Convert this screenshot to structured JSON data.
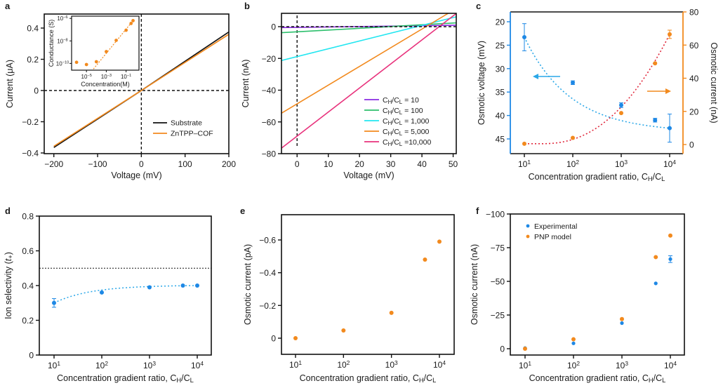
{
  "colors": {
    "black": "#111111",
    "orange": "#f28a1e",
    "blue": "#1e88e5",
    "purple": "#8a2be2",
    "green": "#2cbf6c",
    "cyan": "#22e6f0",
    "magenta": "#e8327c",
    "red_dotted": "#e0283c",
    "light_blue_dotted": "#2aa7e8",
    "axis_blue": "#1e88e5",
    "axis_orange": "#f28a1e"
  },
  "chart_data": [
    {
      "id": "a",
      "panel_label": "a",
      "type": "line",
      "xlabel": "Voltage (mV)",
      "ylabel": "Current (μA)",
      "xlim": [
        -222,
        200
      ],
      "ylim": [
        -0.4,
        0.48
      ],
      "xticks": [
        -200,
        -100,
        0,
        100,
        200
      ],
      "xtick_labels": [
        "−200",
        "−100",
        "0",
        "100",
        "200"
      ],
      "yticks": [
        -0.4,
        -0.2,
        0,
        0.2,
        0.4
      ],
      "ytick_labels": [
        "−0.4",
        "−0.2",
        "0",
        "0.2",
        "0.4"
      ],
      "reference_lines": [
        {
          "axis": "x",
          "value": 0,
          "style": "dashed"
        },
        {
          "axis": "y",
          "value": 0,
          "style": "dashed"
        }
      ],
      "legend_position": "lower-right",
      "series": [
        {
          "name": "Substrate",
          "color": "#111111",
          "x": [
            -200,
            0,
            200
          ],
          "y": [
            -0.365,
            0,
            0.375
          ]
        },
        {
          "name": "ZnTPP–COF",
          "color": "#f28a1e",
          "x": [
            -200,
            0,
            200
          ],
          "y": [
            -0.357,
            0,
            0.36
          ]
        }
      ],
      "inset": {
        "type": "scatter",
        "xlabel": "Concentration(M)",
        "ylabel": "Conductance (S)",
        "xscale": "log",
        "yscale": "log",
        "xlim_exp": [
          -6.5,
          0.3
        ],
        "ylim_exp": [
          -10.6,
          -5.8
        ],
        "xtick_labels": [
          {
            "base": "10",
            "exp": "−5",
            "value_exp": -5
          },
          {
            "base": "10",
            "exp": "−3",
            "value_exp": -3
          },
          {
            "base": "10",
            "exp": "−1",
            "value_exp": -1
          }
        ],
        "ytick_labels": [
          {
            "base": "10",
            "exp": "−6",
            "value_exp": -6
          },
          {
            "base": "10",
            "exp": "−8",
            "value_exp": -8
          },
          {
            "base": "10",
            "exp": "−10",
            "value_exp": -10
          }
        ],
        "points_exp": [
          [
            -6.0,
            -9.9
          ],
          [
            -5.0,
            -10.1
          ],
          [
            -4.0,
            -9.85
          ],
          [
            -3.0,
            -8.95
          ],
          [
            -2.0,
            -7.95
          ],
          [
            -1.0,
            -7.05
          ],
          [
            -0.5,
            -6.45
          ],
          [
            -0.3,
            -6.2
          ]
        ],
        "fit_line_exp": [
          [
            -4.3,
            -10.5
          ],
          [
            -0.3,
            -6.2
          ]
        ],
        "color": "#f28a1e"
      }
    },
    {
      "id": "b",
      "panel_label": "b",
      "type": "line",
      "xlabel": "Voltage (mV)",
      "ylabel": "Current (nA)",
      "xlim": [
        -5,
        51
      ],
      "ylim": [
        -80,
        8.5
      ],
      "xticks": [
        0,
        10,
        20,
        30,
        40,
        50
      ],
      "xtick_labels": [
        "0",
        "10",
        "20",
        "30",
        "40",
        "50"
      ],
      "yticks": [
        -80,
        -60,
        -40,
        -20,
        0
      ],
      "ytick_labels": [
        "−80",
        "−60",
        "−40",
        "−20",
        "0"
      ],
      "reference_lines": [
        {
          "axis": "x",
          "value": 0,
          "style": "dashed"
        },
        {
          "axis": "y",
          "value": 0,
          "style": "dashed"
        }
      ],
      "legend_position": "lower-right",
      "series": [
        {
          "name_parts": [
            "C",
            "H",
            "/C",
            "L",
            " = 10"
          ],
          "color": "#8a2be2",
          "x": [
            -5,
            51
          ],
          "y": [
            -0.6,
            0.9
          ]
        },
        {
          "name_parts": [
            "C",
            "H",
            "/C",
            "L",
            " = 100"
          ],
          "color": "#2cbf6c",
          "x": [
            -5,
            51
          ],
          "y": [
            -3.8,
            2.4
          ]
        },
        {
          "name_parts": [
            "C",
            "H",
            "/C",
            "L",
            " = 1,000"
          ],
          "color": "#22e6f0",
          "x": [
            -5,
            51
          ],
          "y": [
            -21.3,
            6.2
          ]
        },
        {
          "name_parts": [
            "C",
            "H",
            "/C",
            "L",
            " = 5,000"
          ],
          "color": "#f28a1e",
          "x": [
            -5,
            48.5
          ],
          "y": [
            -54.5,
            8.5
          ]
        },
        {
          "name_parts": [
            "C",
            "H",
            "/C",
            "L",
            " =10,000"
          ],
          "color": "#e8327c",
          "x": [
            -5,
            51
          ],
          "y": [
            -76.5,
            8.3
          ]
        }
      ]
    },
    {
      "id": "c",
      "panel_label": "c",
      "type": "scatter",
      "xlabel_parts": [
        "Concentration gradient ratio, C",
        "H",
        "/C",
        "L"
      ],
      "xscale": "log",
      "xlim_exp": [
        0.7,
        4.3
      ],
      "xtick_labels": [
        {
          "base": "10",
          "exp": "1",
          "value_exp": 1
        },
        {
          "base": "10",
          "exp": "2",
          "value_exp": 2
        },
        {
          "base": "10",
          "exp": "3",
          "value_exp": 3
        },
        {
          "base": "10",
          "exp": "4",
          "value_exp": 4
        }
      ],
      "left_axis": {
        "label": "Osmotic voltage (mV)",
        "inverted": true,
        "ylim": [
          18.2,
          48.2
        ],
        "yticks": [
          20,
          25,
          30,
          35,
          40,
          45
        ],
        "ytick_labels": [
          "20",
          "25",
          "30",
          "35",
          "40",
          "45"
        ],
        "color": "#1e88e5"
      },
      "right_axis": {
        "label": "Osmotic current (nA)",
        "ylim": [
          -4,
          80
        ],
        "yticks": [
          0,
          20,
          40,
          60,
          80
        ],
        "ytick_labels": [
          "0",
          "20",
          "40",
          "60",
          "80"
        ],
        "color": "#f28a1e"
      },
      "series": [
        {
          "name": "Osmotic voltage",
          "axis": "left",
          "color": "#1e88e5",
          "fit_color": "#2aa7e8",
          "x": [
            10,
            100,
            1000,
            5000,
            10000
          ],
          "y": [
            23.3,
            33.0,
            37.8,
            41.0,
            42.7
          ],
          "err": [
            2.9,
            0.4,
            0.5,
            0.4,
            3.0
          ]
        },
        {
          "name": "Osmotic current",
          "axis": "right",
          "color": "#f28a1e",
          "fit_color": "#e0283c",
          "x": [
            10,
            100,
            1000,
            5000,
            10000
          ],
          "y": [
            0.5,
            4.0,
            19.0,
            49.0,
            66.5
          ],
          "err": [
            0,
            0,
            0,
            0,
            2.5
          ]
        }
      ],
      "annotations": [
        {
          "type": "arrow",
          "direction": "left",
          "color": "#2aa7e8",
          "meaning": "left axis"
        },
        {
          "type": "arrow",
          "direction": "right",
          "color": "#f28a1e",
          "meaning": "right axis"
        }
      ]
    },
    {
      "id": "d",
      "panel_label": "d",
      "type": "scatter",
      "xlabel_parts": [
        "Concentration gradient ratio, C",
        "H",
        "/C",
        "L"
      ],
      "ylabel_parts": [
        "Ion selectivity (",
        "t",
        "+",
        ")"
      ],
      "xscale": "log",
      "xlim_exp": [
        0.7,
        4.3
      ],
      "ylim": [
        0,
        0.8
      ],
      "xtick_labels": [
        {
          "base": "10",
          "exp": "1",
          "value_exp": 1
        },
        {
          "base": "10",
          "exp": "2",
          "value_exp": 2
        },
        {
          "base": "10",
          "exp": "3",
          "value_exp": 3
        },
        {
          "base": "10",
          "exp": "4",
          "value_exp": 4
        }
      ],
      "yticks": [
        0,
        0.2,
        0.4,
        0.6,
        0.8
      ],
      "ytick_labels": [
        "0",
        "0.2",
        "0.4",
        "0.6",
        "0.8"
      ],
      "reference_lines": [
        {
          "axis": "y",
          "value": 0.5,
          "style": "dashed"
        }
      ],
      "series": [
        {
          "name": "Ion selectivity",
          "color": "#1e88e5",
          "fit_color": "#2aa7e8",
          "x": [
            10,
            100,
            1000,
            5000,
            10000
          ],
          "y": [
            0.3,
            0.36,
            0.39,
            0.4,
            0.4
          ],
          "err": [
            0.025,
            0,
            0,
            0,
            0
          ]
        }
      ]
    },
    {
      "id": "e",
      "panel_label": "e",
      "type": "scatter",
      "xlabel_parts": [
        "Concentration gradient ratio, C",
        "H",
        "/C",
        "L"
      ],
      "ylabel": "Osmotic current (pA)",
      "xscale": "log",
      "xlim_exp": [
        0.7,
        4.3
      ],
      "ylim": [
        0.1,
        -0.75
      ],
      "inverted": true,
      "xtick_labels": [
        {
          "base": "10",
          "exp": "1",
          "value_exp": 1
        },
        {
          "base": "10",
          "exp": "2",
          "value_exp": 2
        },
        {
          "base": "10",
          "exp": "3",
          "value_exp": 3
        },
        {
          "base": "10",
          "exp": "4",
          "value_exp": 4
        }
      ],
      "yticks": [
        0,
        -0.2,
        -0.4,
        -0.6
      ],
      "ytick_labels": [
        "0",
        "−0.2",
        "−0.4",
        "−0.6"
      ],
      "series": [
        {
          "name": "Osmotic current",
          "color": "#f28a1e",
          "x": [
            10,
            100,
            1000,
            5000,
            10000
          ],
          "y": [
            0,
            -0.047,
            -0.155,
            -0.48,
            -0.59
          ]
        }
      ]
    },
    {
      "id": "f",
      "panel_label": "f",
      "type": "scatter",
      "xlabel_parts": [
        "Concentration gradient ratio, C",
        "H",
        "/C",
        "L"
      ],
      "ylabel": "Osmotic current (nA)",
      "xscale": "log",
      "xlim_exp": [
        0.7,
        4.3
      ],
      "ylim": [
        5,
        -100
      ],
      "inverted": true,
      "xtick_labels": [
        {
          "base": "10",
          "exp": "1",
          "value_exp": 1
        },
        {
          "base": "10",
          "exp": "2",
          "value_exp": 2
        },
        {
          "base": "10",
          "exp": "3",
          "value_exp": 3
        },
        {
          "base": "10",
          "exp": "4",
          "value_exp": 4
        }
      ],
      "yticks": [
        0,
        -25,
        -50,
        -75,
        -100
      ],
      "ytick_labels": [
        "0",
        "−25",
        "−50",
        "−75",
        "−100"
      ],
      "legend_position": "top-left",
      "series": [
        {
          "name": "Experimental",
          "color": "#1e88e5",
          "x": [
            10,
            100,
            1000,
            5000,
            10000
          ],
          "y": [
            -0.5,
            -4,
            -19,
            -48.5,
            -66.5
          ],
          "err": [
            0,
            0,
            0,
            0,
            2.5
          ]
        },
        {
          "name": "PNP model",
          "color": "#f28a1e",
          "x": [
            10,
            100,
            1000,
            5000,
            10000
          ],
          "y": [
            0,
            -7,
            -22,
            -68,
            -84
          ]
        }
      ]
    }
  ]
}
